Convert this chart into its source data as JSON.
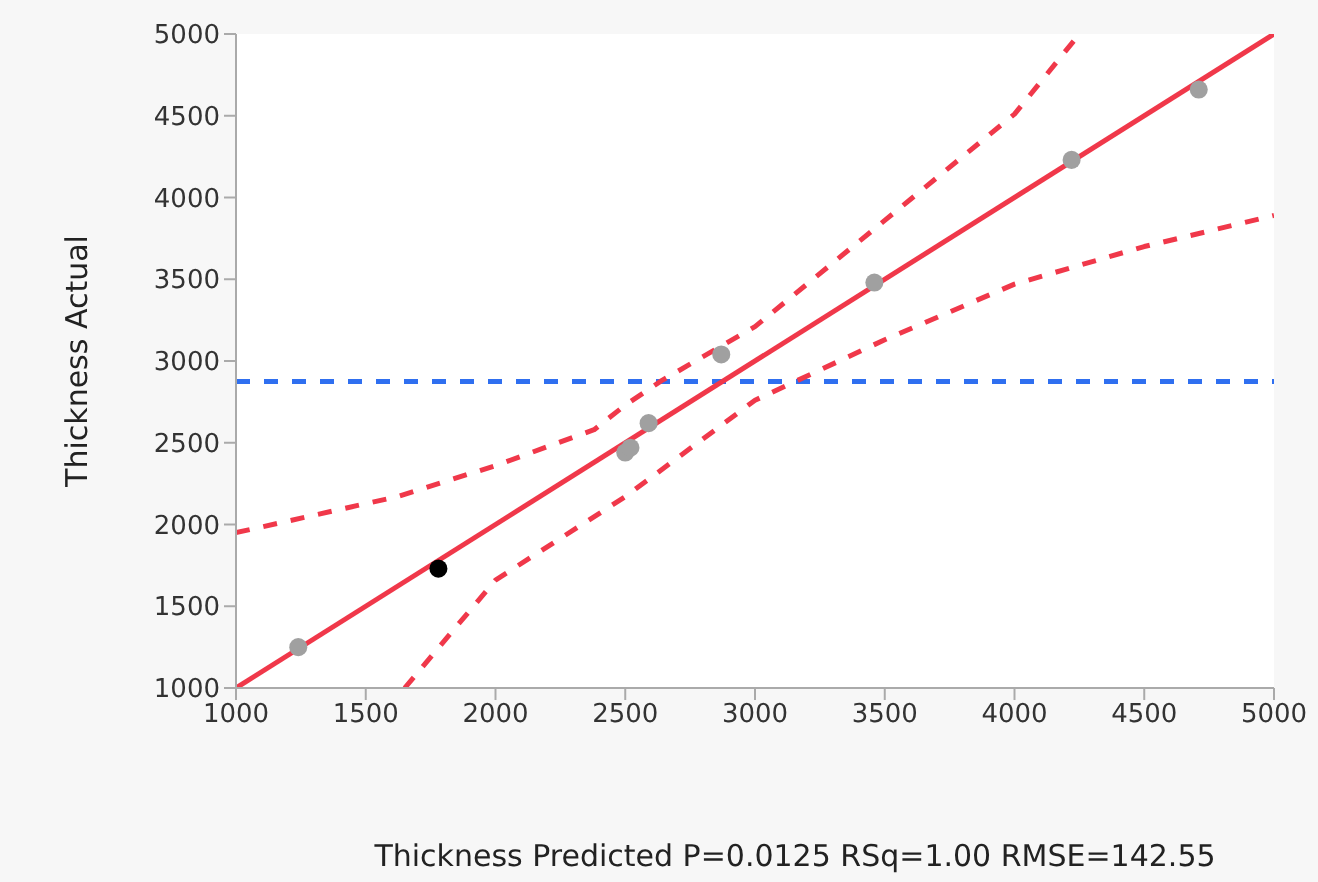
{
  "chart_data": {
    "type": "scatter",
    "xlabel": "Thickness Predicted P=0.0125 RSq=1.00 RMSE=142.55",
    "ylabel": "Thickness Actual",
    "xlim": [
      1000,
      5000
    ],
    "xticks": [
      1000,
      1500,
      2000,
      2500,
      3000,
      3500,
      4000,
      4500,
      5000
    ],
    "ylim": [
      1000,
      5000
    ],
    "yticks": [
      1000,
      1500,
      2000,
      2500,
      3000,
      3500,
      4000,
      4500,
      5000
    ],
    "grid": false,
    "legend": false,
    "marker": "circle",
    "series": [
      {
        "x": [
          1240,
          1780,
          2500,
          2520,
          2590,
          2870,
          3460,
          4220,
          4710
        ],
        "values": [
          1250,
          1730,
          2440,
          2470,
          2620,
          3040,
          3480,
          4230,
          4660
        ],
        "colors": [
          "#a0a0a0",
          "#000000",
          "#a0a0a0",
          "#a0a0a0",
          "#a0a0a0",
          "#a0a0a0",
          "#a0a0a0",
          "#a0a0a0",
          "#a0a0a0"
        ]
      },
      {
        "type": "line",
        "x": [
          1000,
          5000
        ],
        "values": [
          1000,
          5000
        ],
        "color": "#f0384a",
        "line_style": "solid",
        "marker": "none"
      },
      {
        "type": "line",
        "x": [
          1000,
          1620,
          2000,
          2380,
          2500,
          2640,
          3000,
          3500,
          4000,
          4250
        ],
        "values": [
          1950,
          2170,
          2360,
          2580,
          2730,
          2880,
          3210,
          3860,
          4510,
          5000
        ],
        "color": "#f0384a",
        "line_style": "dashed",
        "marker": "none"
      },
      {
        "type": "line",
        "x": [
          1650,
          2000,
          2500,
          3000,
          3500,
          4000,
          4500,
          5000
        ],
        "values": [
          1000,
          1660,
          2170,
          2760,
          3130,
          3470,
          3700,
          3890
        ],
        "color": "#f0384a",
        "line_style": "dashed",
        "marker": "none"
      }
    ],
    "ref_lines": [
      {
        "axis": "y",
        "value": 2875,
        "color": "#2f6ff0",
        "line_style": "dashed"
      }
    ]
  }
}
